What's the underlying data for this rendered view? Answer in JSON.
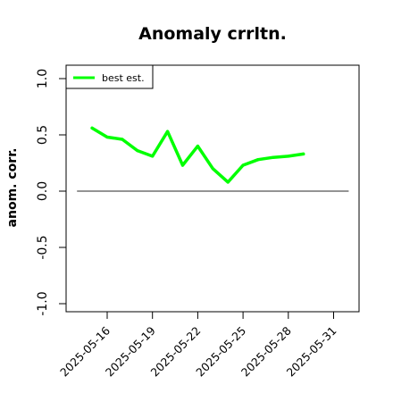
{
  "chart_data": {
    "type": "line",
    "title": "Anomaly crrltn.",
    "xlabel": "",
    "ylabel": "anom. corr.",
    "ylim": [
      -1.0,
      1.0
    ],
    "y_ticks": [
      "-1.0",
      "-0.5",
      "0.0",
      "0.5",
      "1.0"
    ],
    "x_ticks": [
      "2025-05-16",
      "2025-05-19",
      "2025-05-22",
      "2025-05-25",
      "2025-05-28",
      "2025-05-31"
    ],
    "x": [
      "2025-05-15",
      "2025-05-16",
      "2025-05-17",
      "2025-05-18",
      "2025-05-19",
      "2025-05-20",
      "2025-05-21",
      "2025-05-22",
      "2025-05-23",
      "2025-05-24",
      "2025-05-25",
      "2025-05-26",
      "2025-05-27",
      "2025-05-28",
      "2025-05-29"
    ],
    "series": [
      {
        "name": "best est.",
        "color": "#00ff00",
        "values": [
          0.56,
          0.48,
          0.46,
          0.36,
          0.31,
          0.53,
          0.23,
          0.4,
          0.2,
          0.08,
          0.23,
          0.28,
          0.3,
          0.31,
          0.33
        ]
      }
    ],
    "reference_line": {
      "y": 0.0,
      "x_start": "2025-05-14",
      "x_end": "2025-06-01",
      "color": "#555555"
    },
    "legend": {
      "placement": "top-left"
    },
    "grid": false
  }
}
